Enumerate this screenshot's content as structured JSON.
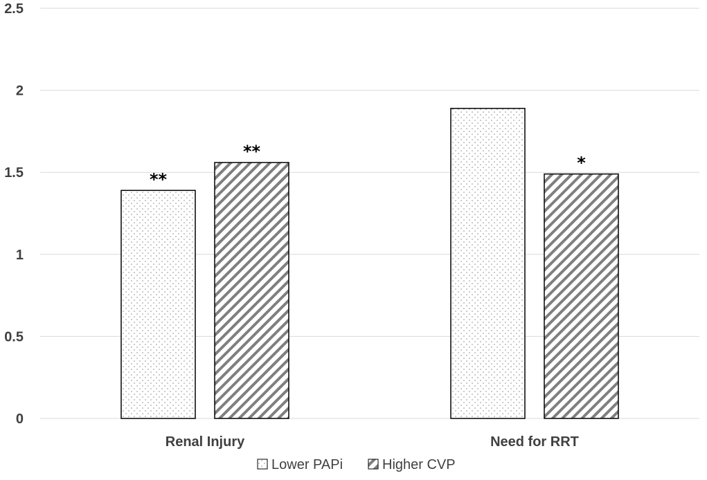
{
  "chart_data": {
    "type": "bar",
    "categories": [
      "Renal Injury",
      "Need for RRT"
    ],
    "series": [
      {
        "name": "Lower PAPi",
        "values": [
          1.39,
          1.89
        ],
        "annotations": [
          "**",
          ""
        ],
        "pattern": "dots"
      },
      {
        "name": "Higher CVP",
        "values": [
          1.56,
          1.49
        ],
        "annotations": [
          "**",
          "*"
        ],
        "pattern": "diagonal"
      }
    ],
    "title": "",
    "xlabel": "",
    "ylabel": "",
    "ylim": [
      0,
      2.5
    ],
    "yticks": [
      "0",
      "0.5",
      "1",
      "1.5",
      "2",
      "2.5"
    ],
    "ytick_values": [
      0,
      0.5,
      1,
      1.5,
      2,
      2.5
    ],
    "grid": true,
    "legend_position": "bottom-center",
    "colors": {
      "bar_outline": "#000000",
      "pattern_fill": "#7f7f7f",
      "grid": "#d9d9d9",
      "text": "#404040"
    }
  }
}
